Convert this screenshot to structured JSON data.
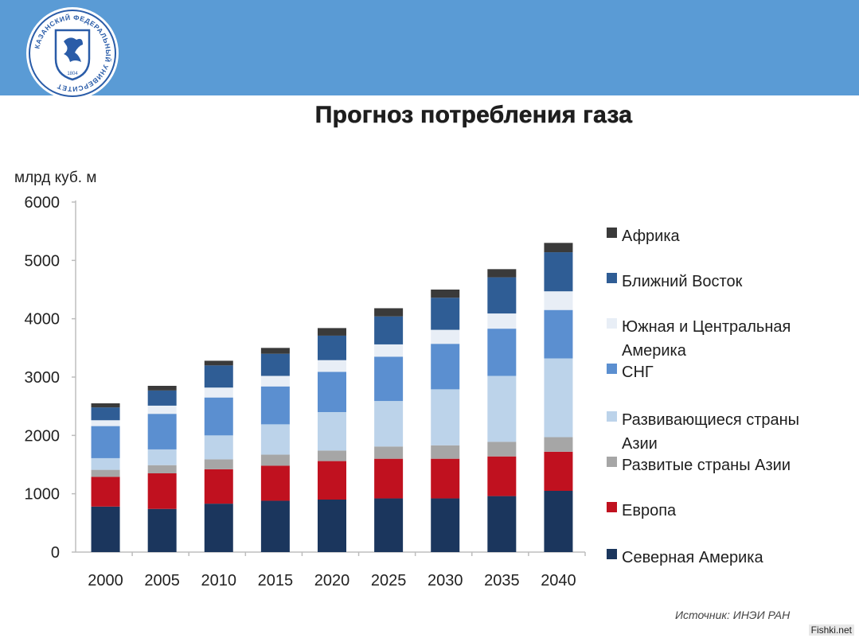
{
  "logo": {
    "ring_text": "КАЗАНСКИЙ ФЕДЕРАЛЬНЫЙ УНИВЕРСИТЕТ",
    "year": "1804"
  },
  "title": "Прогноз потребления газа",
  "unit": "млрд куб. м",
  "source": "Источник: ИНЭИ РАН",
  "watermark": "Fishki.net",
  "chart_data": {
    "type": "bar",
    "stacked": true,
    "title": "Прогноз потребления газа",
    "ylabel": "млрд куб. м",
    "ylim": [
      0,
      6000
    ],
    "yticks": [
      "0",
      "1000",
      "2000",
      "3000",
      "4000",
      "5000",
      "6000"
    ],
    "categories": [
      "2000",
      "2005",
      "2010",
      "2015",
      "2020",
      "2025",
      "2030",
      "2035",
      "2040"
    ],
    "legend_position": "right",
    "series": [
      {
        "name": "Северная Америка",
        "color": "#1b365d",
        "values": [
          780,
          740,
          830,
          880,
          900,
          920,
          920,
          960,
          1050
        ]
      },
      {
        "name": "Европа",
        "color": "#c0111f",
        "values": [
          510,
          610,
          590,
          600,
          660,
          680,
          680,
          680,
          670
        ]
      },
      {
        "name": "Развитые страны Азии",
        "color": "#a6a6a6",
        "values": [
          120,
          140,
          170,
          190,
          180,
          210,
          230,
          250,
          250
        ]
      },
      {
        "name": "Развивающиеся страны Азии",
        "color": "#bcd3ea",
        "values": [
          200,
          270,
          410,
          520,
          660,
          780,
          960,
          1130,
          1350
        ]
      },
      {
        "name": "СНГ",
        "color": "#5b8fd0",
        "values": [
          550,
          610,
          650,
          650,
          690,
          760,
          780,
          810,
          830
        ]
      },
      {
        "name": "Южная и Центральная Америка",
        "color": "#e8eef6",
        "values": [
          100,
          140,
          170,
          180,
          200,
          210,
          240,
          260,
          320
        ]
      },
      {
        "name": "Ближний Восток",
        "color": "#2f5d95",
        "values": [
          220,
          260,
          380,
          380,
          420,
          480,
          550,
          620,
          670
        ]
      },
      {
        "name": "Африка",
        "color": "#3a3a3a",
        "values": [
          70,
          80,
          80,
          100,
          130,
          140,
          140,
          140,
          160
        ]
      }
    ]
  }
}
